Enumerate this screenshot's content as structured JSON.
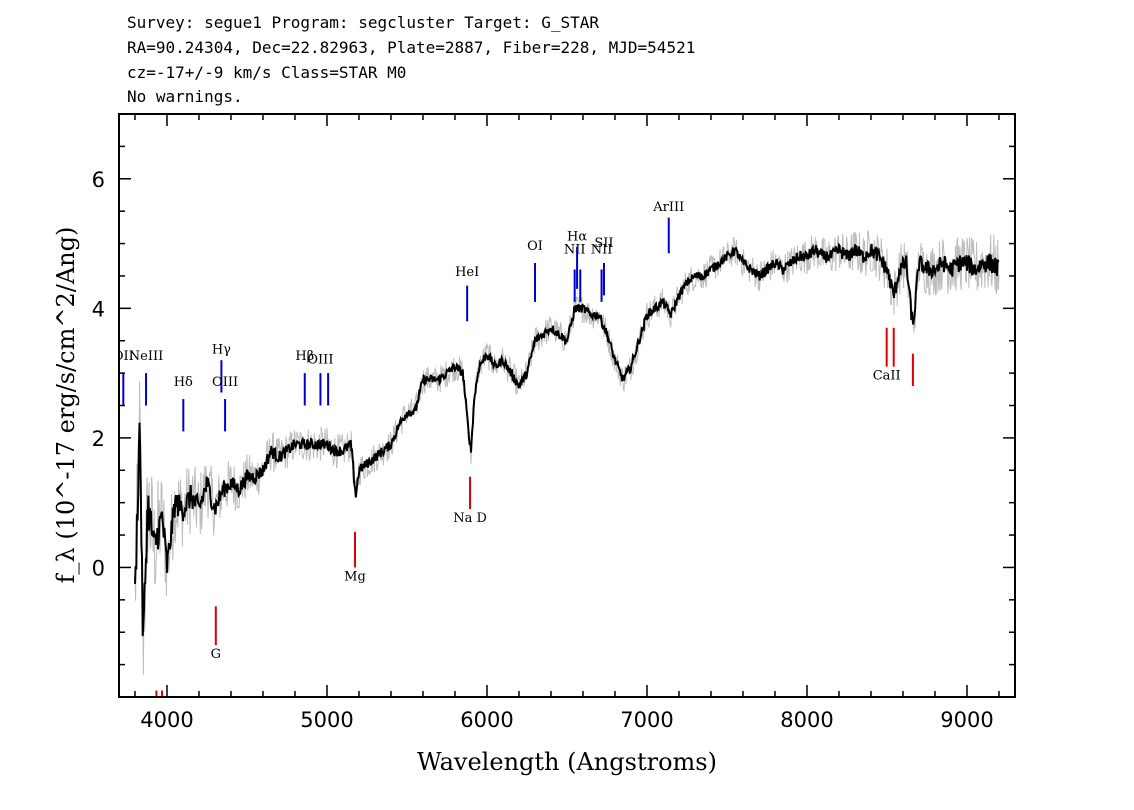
{
  "header": {
    "line1": "Survey: segue1 Program: segcluster Target: G_STAR",
    "line2": "RA=90.24304, Dec=22.82963, Plate=2887, Fiber=228, MJD=54521",
    "line3": "cz=-17+/-9 km/s Class=STAR M0",
    "line4": "No warnings."
  },
  "chart_data": {
    "type": "line",
    "xlabel": "Wavelength (Angstroms)",
    "ylabel": "f_λ (10^-17 erg/s/cm^2/Ang)",
    "xlim": [
      3700,
      9300
    ],
    "ylim": [
      -2,
      7
    ],
    "xticks": [
      "4000",
      "5000",
      "6000",
      "7000",
      "8000",
      "9000"
    ],
    "yticks": [
      "0",
      "2",
      "4",
      "6"
    ],
    "series": [
      {
        "role": "flux",
        "color": "#000000",
        "points": [
          [
            3800,
            -0.5
          ],
          [
            3830,
            2.3
          ],
          [
            3850,
            -1.2
          ],
          [
            3880,
            1.0
          ],
          [
            3920,
            0.3
          ],
          [
            3970,
            0.8
          ],
          [
            4000,
            0.0
          ],
          [
            4050,
            1.0
          ],
          [
            4100,
            0.9
          ],
          [
            4150,
            1.1
          ],
          [
            4200,
            0.9
          ],
          [
            4250,
            1.3
          ],
          [
            4300,
            0.9
          ],
          [
            4350,
            1.2
          ],
          [
            4400,
            1.3
          ],
          [
            4450,
            1.2
          ],
          [
            4500,
            1.4
          ],
          [
            4550,
            1.4
          ],
          [
            4600,
            1.5
          ],
          [
            4650,
            1.8
          ],
          [
            4700,
            1.7
          ],
          [
            4750,
            1.8
          ],
          [
            4800,
            1.9
          ],
          [
            4850,
            1.9
          ],
          [
            4900,
            1.9
          ],
          [
            4950,
            1.9
          ],
          [
            5000,
            1.9
          ],
          [
            5050,
            1.8
          ],
          [
            5100,
            1.8
          ],
          [
            5150,
            1.9
          ],
          [
            5180,
            1.1
          ],
          [
            5200,
            1.5
          ],
          [
            5250,
            1.6
          ],
          [
            5300,
            1.7
          ],
          [
            5350,
            1.8
          ],
          [
            5400,
            1.9
          ],
          [
            5450,
            2.2
          ],
          [
            5500,
            2.4
          ],
          [
            5550,
            2.4
          ],
          [
            5600,
            2.9
          ],
          [
            5650,
            2.9
          ],
          [
            5700,
            2.9
          ],
          [
            5750,
            3.0
          ],
          [
            5800,
            3.1
          ],
          [
            5850,
            3.0
          ],
          [
            5880,
            2.2
          ],
          [
            5900,
            1.8
          ],
          [
            5920,
            2.6
          ],
          [
            5950,
            3.1
          ],
          [
            6000,
            3.3
          ],
          [
            6050,
            3.1
          ],
          [
            6100,
            3.2
          ],
          [
            6150,
            3.0
          ],
          [
            6200,
            2.8
          ],
          [
            6250,
            3.0
          ],
          [
            6300,
            3.5
          ],
          [
            6350,
            3.6
          ],
          [
            6400,
            3.7
          ],
          [
            6450,
            3.6
          ],
          [
            6500,
            3.5
          ],
          [
            6550,
            4.0
          ],
          [
            6600,
            4.0
          ],
          [
            6650,
            3.9
          ],
          [
            6700,
            3.9
          ],
          [
            6750,
            3.6
          ],
          [
            6800,
            3.2
          ],
          [
            6850,
            2.9
          ],
          [
            6900,
            3.1
          ],
          [
            6950,
            3.5
          ],
          [
            7000,
            3.9
          ],
          [
            7050,
            4.0
          ],
          [
            7100,
            4.1
          ],
          [
            7150,
            3.9
          ],
          [
            7200,
            4.2
          ],
          [
            7250,
            4.4
          ],
          [
            7300,
            4.5
          ],
          [
            7350,
            4.5
          ],
          [
            7400,
            4.6
          ],
          [
            7450,
            4.7
          ],
          [
            7500,
            4.8
          ],
          [
            7550,
            4.9
          ],
          [
            7600,
            4.7
          ],
          [
            7650,
            4.6
          ],
          [
            7700,
            4.5
          ],
          [
            7750,
            4.6
          ],
          [
            7800,
            4.7
          ],
          [
            7850,
            4.6
          ],
          [
            7900,
            4.7
          ],
          [
            7950,
            4.8
          ],
          [
            8000,
            4.8
          ],
          [
            8050,
            4.9
          ],
          [
            8100,
            4.8
          ],
          [
            8150,
            4.8
          ],
          [
            8200,
            4.9
          ],
          [
            8250,
            4.8
          ],
          [
            8300,
            4.9
          ],
          [
            8350,
            4.8
          ],
          [
            8400,
            4.9
          ],
          [
            8450,
            4.8
          ],
          [
            8500,
            4.6
          ],
          [
            8542,
            4.2
          ],
          [
            8580,
            4.6
          ],
          [
            8620,
            4.7
          ],
          [
            8662,
            3.7
          ],
          [
            8700,
            4.7
          ],
          [
            8750,
            4.6
          ],
          [
            8800,
            4.6
          ],
          [
            8850,
            4.7
          ],
          [
            8900,
            4.6
          ],
          [
            8950,
            4.7
          ],
          [
            9000,
            4.7
          ],
          [
            9050,
            4.6
          ],
          [
            9100,
            4.7
          ],
          [
            9150,
            4.7
          ],
          [
            9200,
            4.6
          ]
        ]
      },
      {
        "role": "error-band",
        "color": "#bdbdbd",
        "points": [
          [
            3800,
            0.9
          ],
          [
            3900,
            0.9
          ],
          [
            4000,
            0.6
          ],
          [
            4200,
            0.5
          ],
          [
            4400,
            0.35
          ],
          [
            4600,
            0.3
          ],
          [
            4800,
            0.25
          ],
          [
            5000,
            0.25
          ],
          [
            5500,
            0.2
          ],
          [
            6000,
            0.2
          ],
          [
            6500,
            0.2
          ],
          [
            7000,
            0.2
          ],
          [
            7500,
            0.2
          ],
          [
            8000,
            0.25
          ],
          [
            8500,
            0.35
          ],
          [
            9000,
            0.4
          ],
          [
            9200,
            0.45
          ]
        ]
      }
    ],
    "emission_lines": [
      {
        "label": "OII",
        "wavelength": 3727,
        "label_y": 3.2,
        "y_top": 3.0,
        "y_bot": 2.5
      },
      {
        "label": "NeIII",
        "wavelength": 3869,
        "label_y": 3.2,
        "y_top": 3.0,
        "y_bot": 2.5
      },
      {
        "label": "Hδ",
        "wavelength": 4102,
        "label_y": 2.8,
        "y_top": 2.6,
        "y_bot": 2.1
      },
      {
        "label": "Hγ",
        "wavelength": 4340,
        "label_y": 3.3,
        "y_top": 3.2,
        "y_bot": 2.7
      },
      {
        "label": "OIII",
        "wavelength": 4363,
        "label_y": 2.8,
        "y_top": 2.6,
        "y_bot": 2.1
      },
      {
        "label": "Hβ",
        "wavelength": 4861,
        "label_y": 3.2,
        "y_top": 3.0,
        "y_bot": 2.5
      },
      {
        "label": "OIII",
        "wavelength": 4959,
        "label_y": 3.15,
        "y_top": 3.0,
        "y_bot": 2.5
      },
      {
        "label": "",
        "wavelength": 5007,
        "label_y": 3.15,
        "y_top": 3.0,
        "y_bot": 2.5
      },
      {
        "label": "HeI",
        "wavelength": 5876,
        "label_y": 4.5,
        "y_top": 4.35,
        "y_bot": 3.8
      },
      {
        "label": "OI",
        "wavelength": 6300,
        "label_y": 4.9,
        "y_top": 4.7,
        "y_bot": 4.1
      },
      {
        "label": "NII",
        "wavelength": 6548,
        "label_y": 4.85,
        "y_top": 4.6,
        "y_bot": 4.1
      },
      {
        "label": "Hα",
        "wavelength": 6563,
        "label_y": 5.05,
        "y_top": 4.95,
        "y_bot": 4.3
      },
      {
        "label": "",
        "wavelength": 6583,
        "label_y": 4.85,
        "y_top": 4.6,
        "y_bot": 4.1
      },
      {
        "label": "NII",
        "wavelength": 6716,
        "label_y": 4.85,
        "y_top": 4.6,
        "y_bot": 4.1
      },
      {
        "label": "SII",
        "wavelength": 6731,
        "label_y": 4.95,
        "y_top": 4.7,
        "y_bot": 4.2
      },
      {
        "label": "ArIII",
        "wavelength": 7136,
        "label_y": 5.5,
        "y_top": 5.4,
        "y_bot": 4.85
      }
    ],
    "absorption_lines": [
      {
        "label": "G",
        "wavelength": 4305,
        "label_y": -1.4,
        "y_top": -0.6,
        "y_bot": -1.2
      },
      {
        "label": "",
        "wavelength": 3934,
        "label_y": -2.0,
        "y_top": -1.9,
        "y_bot": -2.1
      },
      {
        "label": "",
        "wavelength": 3969,
        "label_y": -2.0,
        "y_top": -1.9,
        "y_bot": -2.1
      },
      {
        "label": "Mg",
        "wavelength": 5175,
        "label_y": -0.2,
        "y_top": 0.55,
        "y_bot": 0.0
      },
      {
        "label": "Na D",
        "wavelength": 5894,
        "label_y": 0.7,
        "y_top": 1.4,
        "y_bot": 0.9
      },
      {
        "label": "CaII",
        "wavelength": 8498,
        "label_y": 2.9,
        "y_top": 3.7,
        "y_bot": 3.1
      },
      {
        "label": "",
        "wavelength": 8542,
        "label_y": 2.9,
        "y_top": 3.7,
        "y_bot": 3.1
      },
      {
        "label": "",
        "wavelength": 8662,
        "label_y": 2.9,
        "y_top": 3.3,
        "y_bot": 2.8
      }
    ],
    "emission_color": "#0000cc",
    "absorption_color": "#dd0000"
  }
}
